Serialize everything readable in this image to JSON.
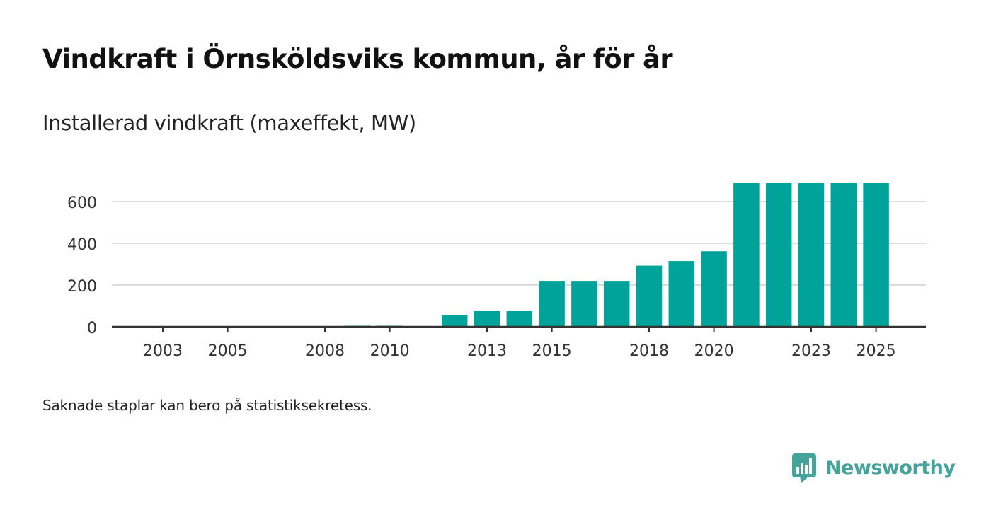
{
  "header": {
    "title": "Vindkraft i Örnsköldsviks kommun, år för år",
    "subtitle": "Installerad vindkraft (maxeffekt, MW)"
  },
  "footer": {
    "note": "Saknade staplar kan bero på statistiksekretess.",
    "brand": "Newsworthy"
  },
  "colors": {
    "bar": "#00a399",
    "brand": "#44a39b",
    "gridline": "#dcdcdc",
    "axis": "#333333"
  },
  "chart_data": {
    "type": "bar",
    "title": "Vindkraft i Örnsköldsviks kommun, år för år",
    "subtitle": "Installerad vindkraft (maxeffekt, MW)",
    "xlabel": "",
    "ylabel": "",
    "categories": [
      "2003",
      "2004",
      "2005",
      "2006",
      "2007",
      "2008",
      "2009",
      "2010",
      "2011",
      "2012",
      "2013",
      "2014",
      "2015",
      "2016",
      "2017",
      "2018",
      "2019",
      "2020",
      "2021",
      "2022",
      "2023",
      "2024",
      "2025"
    ],
    "values": [
      3,
      3,
      3,
      3,
      3,
      3,
      5,
      5,
      3,
      57,
      75,
      75,
      220,
      220,
      220,
      293,
      315,
      362,
      690,
      690,
      690,
      690,
      690
    ],
    "x_tick_labels": [
      "2003",
      "2005",
      "2008",
      "2010",
      "2013",
      "2015",
      "2018",
      "2020",
      "2023",
      "2025"
    ],
    "y_ticks": [
      0,
      200,
      400,
      600
    ],
    "ylim": [
      0,
      700
    ],
    "grid": true,
    "legend": "none"
  }
}
